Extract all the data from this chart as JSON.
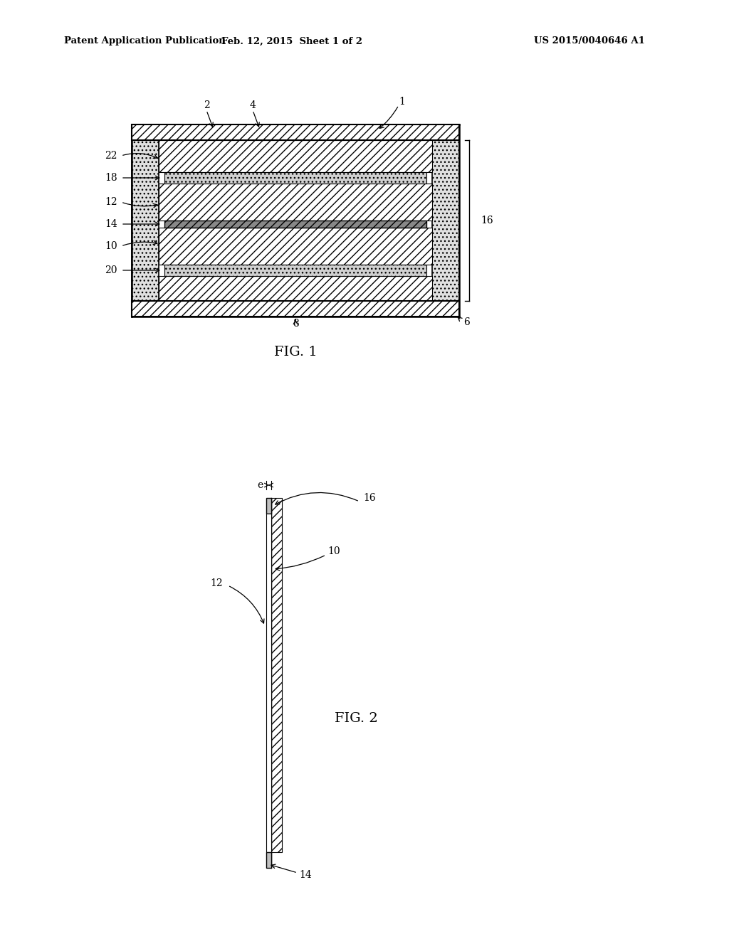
{
  "header_left": "Patent Application Publication",
  "header_center": "Feb. 12, 2015  Sheet 1 of 2",
  "header_right": "US 2015/0040646 A1",
  "fig1_label": "FIG. 1",
  "fig2_label": "FIG. 2",
  "background_color": "#ffffff",
  "line_color": "#000000"
}
